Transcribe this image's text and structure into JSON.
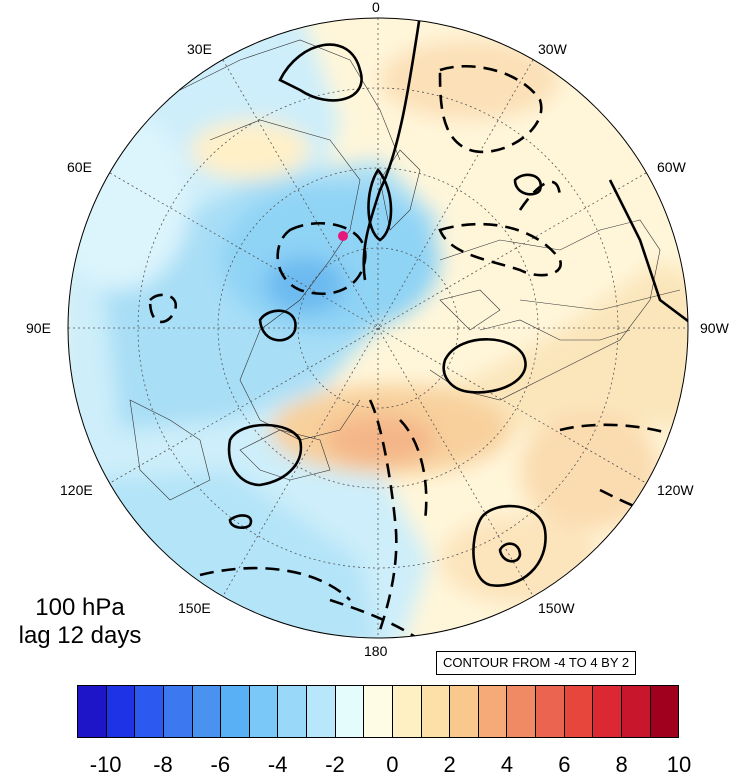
{
  "map": {
    "projection": "north polar stereographic",
    "marker_color": "#e6167a"
  },
  "longitude_labels": [
    {
      "key": "lon-0",
      "text": "0"
    },
    {
      "key": "lon-30w",
      "text": "30W"
    },
    {
      "key": "lon-60w",
      "text": "60W"
    },
    {
      "key": "lon-90w",
      "text": "90W"
    },
    {
      "key": "lon-120w",
      "text": "120W"
    },
    {
      "key": "lon-150w",
      "text": "150W"
    },
    {
      "key": "lon-180",
      "text": "180"
    },
    {
      "key": "lon-150e",
      "text": "150E"
    },
    {
      "key": "lon-120e",
      "text": "120E"
    },
    {
      "key": "lon-90e",
      "text": "90E"
    },
    {
      "key": "lon-60e",
      "text": "60E"
    },
    {
      "key": "lon-30e",
      "text": "30E"
    }
  ],
  "caption": {
    "line1": "100 hPa",
    "line2": "lag 12 days"
  },
  "contour_note": "CONTOUR FROM -4 TO 4 BY 2",
  "colorbar": {
    "colors": [
      "#1e14c8",
      "#1e32e6",
      "#2c5af0",
      "#3c78f0",
      "#4a92f0",
      "#5ab0f5",
      "#7ac8f8",
      "#9ad8fa",
      "#b8e6fa",
      "#e4fcfc",
      "#fffce6",
      "#fff0c4",
      "#fce0a8",
      "#f8c88c",
      "#f5aa78",
      "#f08a64",
      "#eb6450",
      "#e6463c",
      "#dc2832",
      "#c8162d",
      "#a0001e"
    ],
    "tick_labels": [
      "-10",
      "-8",
      "-6",
      "-4",
      "-2",
      "0",
      "2",
      "4",
      "6",
      "8",
      "10"
    ]
  }
}
